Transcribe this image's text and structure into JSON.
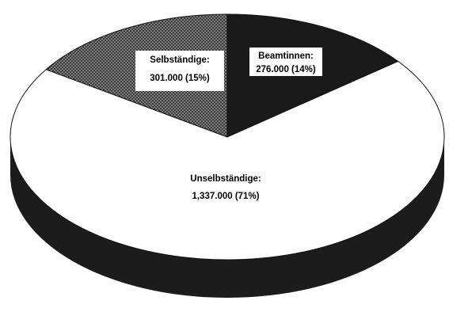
{
  "chart_data": {
    "type": "pie",
    "style": "3d",
    "slices": [
      {
        "name": "Beamtinnen",
        "value": 276000,
        "percent": 14,
        "label": "Beamtinnen:",
        "value_label": "276.000 (14%)",
        "fill": "solid-black"
      },
      {
        "name": "Unselbständige",
        "value": 1337000,
        "percent": 71,
        "label": "Unselbständige:",
        "value_label": "1,337.000 (71%)",
        "fill": "white"
      },
      {
        "name": "Selbständige",
        "value": 301000,
        "percent": 15,
        "label": "Selbständige:",
        "value_label": "301.000 (15%)",
        "fill": "dotted-pattern"
      }
    ],
    "colors": {
      "dark": "#1a1a1a",
      "light": "#ffffff",
      "side": "#1c1c1c"
    }
  }
}
